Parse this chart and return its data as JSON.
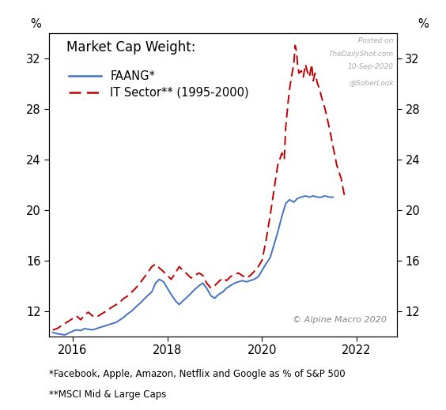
{
  "title": "Market Cap Weight:",
  "legend_faang": "FAANG*",
  "legend_it": "IT Sector** (1995-2000)",
  "ylabel_left": "%",
  "ylabel_right": "%",
  "footnote1": "*Facebook, Apple, Amazon, Netflix and Google as % of S&P 500",
  "footnote2": "**MSCI Mid & Large Caps",
  "watermark_line1": "Posted on",
  "watermark_line2": "TheDailyShot.com",
  "watermark_line3": "10-Sep-2020",
  "watermark_line4": "@SoberLook",
  "copyright": "© Alpine Macro 2020",
  "ylim": [
    10,
    34
  ],
  "yticks": [
    12,
    16,
    20,
    24,
    28,
    32
  ],
  "xlim_start": 2015.5,
  "xlim_end": 2022.85,
  "xticks": [
    2016,
    2018,
    2020,
    2022
  ],
  "background_color": "#ffffff",
  "faang_color": "#4472C4",
  "it_color": "#C00000",
  "faang_data": [
    [
      2015.58,
      10.3
    ],
    [
      2015.67,
      10.2
    ],
    [
      2015.75,
      10.15
    ],
    [
      2015.83,
      10.1
    ],
    [
      2015.92,
      10.25
    ],
    [
      2016.0,
      10.4
    ],
    [
      2016.08,
      10.5
    ],
    [
      2016.17,
      10.45
    ],
    [
      2016.25,
      10.6
    ],
    [
      2016.33,
      10.55
    ],
    [
      2016.42,
      10.5
    ],
    [
      2016.5,
      10.6
    ],
    [
      2016.58,
      10.7
    ],
    [
      2016.67,
      10.8
    ],
    [
      2016.75,
      10.9
    ],
    [
      2016.83,
      11.0
    ],
    [
      2016.92,
      11.1
    ],
    [
      2017.0,
      11.3
    ],
    [
      2017.08,
      11.5
    ],
    [
      2017.17,
      11.8
    ],
    [
      2017.25,
      12.0
    ],
    [
      2017.33,
      12.3
    ],
    [
      2017.42,
      12.6
    ],
    [
      2017.5,
      12.9
    ],
    [
      2017.58,
      13.2
    ],
    [
      2017.67,
      13.5
    ],
    [
      2017.75,
      14.2
    ],
    [
      2017.83,
      14.5
    ],
    [
      2017.92,
      14.3
    ],
    [
      2018.0,
      13.8
    ],
    [
      2018.08,
      13.3
    ],
    [
      2018.17,
      12.8
    ],
    [
      2018.25,
      12.5
    ],
    [
      2018.33,
      12.8
    ],
    [
      2018.42,
      13.1
    ],
    [
      2018.5,
      13.4
    ],
    [
      2018.58,
      13.7
    ],
    [
      2018.67,
      14.0
    ],
    [
      2018.75,
      14.2
    ],
    [
      2018.83,
      13.8
    ],
    [
      2018.92,
      13.2
    ],
    [
      2019.0,
      13.0
    ],
    [
      2019.08,
      13.3
    ],
    [
      2019.17,
      13.5
    ],
    [
      2019.25,
      13.8
    ],
    [
      2019.33,
      14.0
    ],
    [
      2019.42,
      14.2
    ],
    [
      2019.5,
      14.3
    ],
    [
      2019.58,
      14.4
    ],
    [
      2019.67,
      14.3
    ],
    [
      2019.75,
      14.4
    ],
    [
      2019.83,
      14.5
    ],
    [
      2019.92,
      14.7
    ],
    [
      2020.0,
      15.2
    ],
    [
      2020.08,
      15.7
    ],
    [
      2020.17,
      16.2
    ],
    [
      2020.25,
      17.2
    ],
    [
      2020.33,
      18.2
    ],
    [
      2020.42,
      19.5
    ],
    [
      2020.5,
      20.5
    ],
    [
      2020.58,
      20.8
    ],
    [
      2020.67,
      20.6
    ],
    [
      2020.75,
      20.9
    ],
    [
      2020.83,
      21.0
    ],
    [
      2020.92,
      21.1
    ],
    [
      2021.0,
      21.0
    ],
    [
      2021.08,
      21.1
    ],
    [
      2021.17,
      21.0
    ],
    [
      2021.25,
      21.0
    ],
    [
      2021.33,
      21.1
    ],
    [
      2021.42,
      21.0
    ],
    [
      2021.5,
      21.0
    ]
  ],
  "it_data": [
    [
      2015.58,
      10.5
    ],
    [
      2015.67,
      10.6
    ],
    [
      2015.75,
      10.8
    ],
    [
      2015.83,
      11.0
    ],
    [
      2015.92,
      11.2
    ],
    [
      2016.0,
      11.4
    ],
    [
      2016.08,
      11.6
    ],
    [
      2016.17,
      11.3
    ],
    [
      2016.25,
      11.7
    ],
    [
      2016.33,
      11.9
    ],
    [
      2016.42,
      11.6
    ],
    [
      2016.5,
      11.5
    ],
    [
      2016.58,
      11.7
    ],
    [
      2016.67,
      11.9
    ],
    [
      2016.75,
      12.1
    ],
    [
      2016.83,
      12.3
    ],
    [
      2016.92,
      12.5
    ],
    [
      2017.0,
      12.7
    ],
    [
      2017.08,
      13.0
    ],
    [
      2017.17,
      13.2
    ],
    [
      2017.25,
      13.5
    ],
    [
      2017.33,
      13.8
    ],
    [
      2017.42,
      14.2
    ],
    [
      2017.5,
      14.6
    ],
    [
      2017.58,
      15.0
    ],
    [
      2017.67,
      15.5
    ],
    [
      2017.75,
      15.7
    ],
    [
      2017.83,
      15.4
    ],
    [
      2017.92,
      15.1
    ],
    [
      2018.0,
      14.8
    ],
    [
      2018.08,
      14.5
    ],
    [
      2018.17,
      15.0
    ],
    [
      2018.25,
      15.5
    ],
    [
      2018.33,
      15.2
    ],
    [
      2018.42,
      14.9
    ],
    [
      2018.5,
      14.6
    ],
    [
      2018.58,
      14.8
    ],
    [
      2018.67,
      15.0
    ],
    [
      2018.75,
      14.8
    ],
    [
      2018.83,
      14.2
    ],
    [
      2018.92,
      13.8
    ],
    [
      2019.0,
      14.0
    ],
    [
      2019.08,
      14.3
    ],
    [
      2019.17,
      14.6
    ],
    [
      2019.25,
      14.4
    ],
    [
      2019.33,
      14.7
    ],
    [
      2019.42,
      14.9
    ],
    [
      2019.5,
      15.0
    ],
    [
      2019.58,
      14.8
    ],
    [
      2019.67,
      14.6
    ],
    [
      2019.75,
      14.8
    ],
    [
      2019.83,
      15.1
    ],
    [
      2019.92,
      15.5
    ],
    [
      2020.0,
      16.0
    ],
    [
      2020.08,
      17.5
    ],
    [
      2020.17,
      19.5
    ],
    [
      2020.25,
      21.5
    ],
    [
      2020.33,
      23.5
    ],
    [
      2020.42,
      24.5
    ],
    [
      2020.47,
      24.0
    ],
    [
      2020.5,
      26.5
    ],
    [
      2020.55,
      28.5
    ],
    [
      2020.58,
      29.5
    ],
    [
      2020.62,
      30.5
    ],
    [
      2020.67,
      31.5
    ],
    [
      2020.7,
      33.0
    ],
    [
      2020.73,
      32.5
    ],
    [
      2020.75,
      31.5
    ],
    [
      2020.78,
      30.8
    ],
    [
      2020.83,
      31.0
    ],
    [
      2020.87,
      30.5
    ],
    [
      2020.92,
      31.5
    ],
    [
      2020.95,
      31.0
    ],
    [
      2021.0,
      30.5
    ],
    [
      2021.05,
      31.5
    ],
    [
      2021.08,
      30.2
    ],
    [
      2021.12,
      30.8
    ],
    [
      2021.17,
      30.0
    ],
    [
      2021.22,
      29.5
    ],
    [
      2021.25,
      29.0
    ],
    [
      2021.33,
      28.0
    ],
    [
      2021.42,
      26.5
    ],
    [
      2021.5,
      25.0
    ],
    [
      2021.58,
      23.5
    ],
    [
      2021.67,
      22.5
    ],
    [
      2021.72,
      21.5
    ],
    [
      2021.75,
      21.0
    ]
  ]
}
